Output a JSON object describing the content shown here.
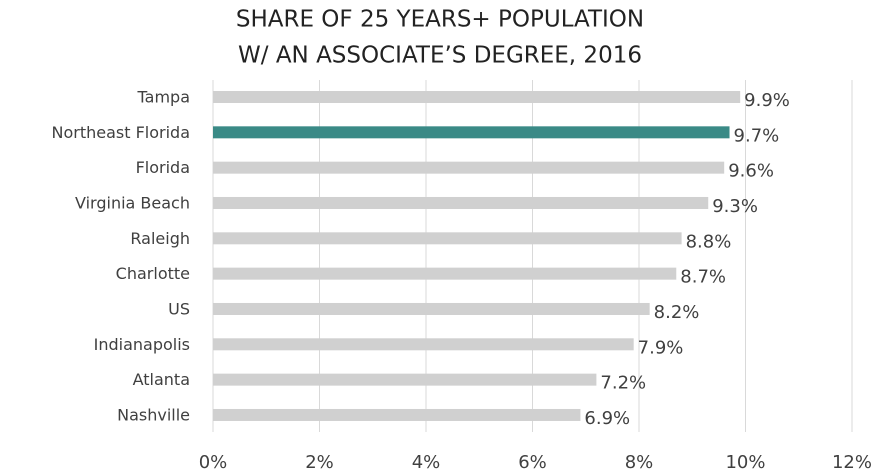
{
  "chart_data": {
    "type": "bar",
    "orientation": "horizontal",
    "title_lines": [
      "SHARE OF 25 YEARS+ POPULATION",
      "W/ AN ASSOCIATE’S DEGREE, 2016"
    ],
    "categories": [
      "Tampa",
      "Northeast Florida",
      "Florida",
      "Virginia Beach",
      "Raleigh",
      "Charlotte",
      "US",
      "Indianapolis",
      "Atlanta",
      "Nashville"
    ],
    "values": [
      9.9,
      9.7,
      9.6,
      9.3,
      8.8,
      8.7,
      8.2,
      7.9,
      7.2,
      6.9
    ],
    "value_labels": [
      "9.9%",
      "9.7%",
      "9.6%",
      "9.3%",
      "8.8%",
      "8.7%",
      "8.2%",
      "7.9%",
      "7.2%",
      "6.9%"
    ],
    "colors": [
      "#d0d0d0",
      "#3a8a86",
      "#d0d0d0",
      "#d0d0d0",
      "#d0d0d0",
      "#d0d0d0",
      "#d0d0d0",
      "#d0d0d0",
      "#d0d0d0",
      "#d0d0d0"
    ],
    "xlim": [
      0,
      12
    ],
    "xticks": [
      {
        "value": 0,
        "label": "0%"
      },
      {
        "value": 2,
        "label": "2%"
      },
      {
        "value": 4,
        "label": "4%"
      },
      {
        "value": 6,
        "label": "6%"
      },
      {
        "value": 8,
        "label": "8%"
      },
      {
        "value": 10,
        "label": "10%"
      },
      {
        "value": 12,
        "label": "12%"
      }
    ],
    "grid": true
  }
}
